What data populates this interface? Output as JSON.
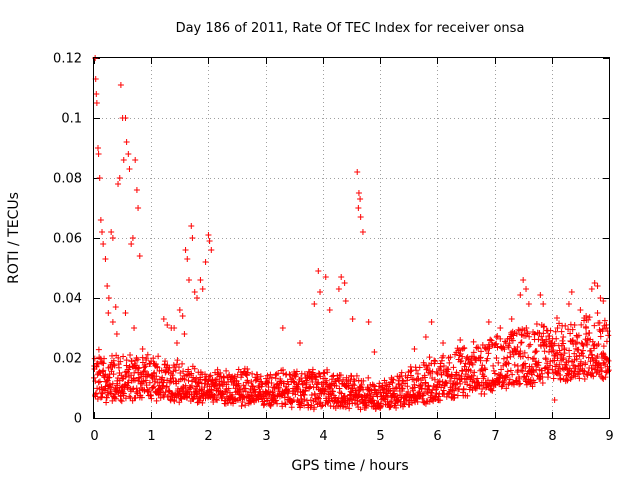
{
  "chart_data": {
    "type": "scatter",
    "title": "Day 186 of 2011, Rate Of TEC Index for receiver onsa",
    "xlabel": "GPS time / hours",
    "ylabel": "ROTI / TECUs",
    "xlim": [
      0,
      9
    ],
    "ylim": [
      0,
      0.12
    ],
    "x_ticks": [
      0,
      1,
      2,
      3,
      4,
      5,
      6,
      7,
      8,
      9
    ],
    "x_tick_labels": [
      "0",
      "1",
      "2",
      "3",
      "4",
      "5",
      "6",
      "7",
      "8",
      "9"
    ],
    "y_ticks": [
      0,
      0.02,
      0.04,
      0.06,
      0.08,
      0.1,
      0.12
    ],
    "y_tick_labels": [
      "0",
      "0.02",
      "0.04",
      "0.06",
      "0.08",
      "0.1",
      "0.12"
    ],
    "grid": true,
    "marker": "+",
    "color": "#ff0000",
    "series": [
      {
        "name": "ROTI",
        "points": [
          [
            0.02,
            0.12
          ],
          [
            0.03,
            0.113
          ],
          [
            0.04,
            0.108
          ],
          [
            0.05,
            0.105
          ],
          [
            0.07,
            0.09
          ],
          [
            0.08,
            0.088
          ],
          [
            0.1,
            0.08
          ],
          [
            0.12,
            0.066
          ],
          [
            0.14,
            0.062
          ],
          [
            0.16,
            0.058
          ],
          [
            0.2,
            0.053
          ],
          [
            0.23,
            0.044
          ],
          [
            0.26,
            0.04
          ],
          [
            0.3,
            0.062
          ],
          [
            0.33,
            0.06
          ],
          [
            0.38,
            0.037
          ],
          [
            0.42,
            0.078
          ],
          [
            0.45,
            0.08
          ],
          [
            0.47,
            0.111
          ],
          [
            0.5,
            0.1
          ],
          [
            0.52,
            0.086
          ],
          [
            0.55,
            0.1
          ],
          [
            0.57,
            0.092
          ],
          [
            0.6,
            0.088
          ],
          [
            0.62,
            0.083
          ],
          [
            0.65,
            0.058
          ],
          [
            0.68,
            0.06
          ],
          [
            0.72,
            0.086
          ],
          [
            0.75,
            0.076
          ],
          [
            0.77,
            0.07
          ],
          [
            0.8,
            0.054
          ],
          [
            0.33,
            0.032
          ],
          [
            0.4,
            0.028
          ],
          [
            0.25,
            0.035
          ],
          [
            0.55,
            0.035
          ],
          [
            0.7,
            0.03
          ],
          [
            0.85,
            0.023
          ],
          [
            1.22,
            0.033
          ],
          [
            1.28,
            0.031
          ],
          [
            1.35,
            0.03
          ],
          [
            1.5,
            0.036
          ],
          [
            1.55,
            0.034
          ],
          [
            1.6,
            0.056
          ],
          [
            1.63,
            0.053
          ],
          [
            1.66,
            0.046
          ],
          [
            1.7,
            0.064
          ],
          [
            1.72,
            0.06
          ],
          [
            1.76,
            0.042
          ],
          [
            1.8,
            0.04
          ],
          [
            1.86,
            0.046
          ],
          [
            1.9,
            0.043
          ],
          [
            1.95,
            0.052
          ],
          [
            2.0,
            0.061
          ],
          [
            2.02,
            0.059
          ],
          [
            2.05,
            0.056
          ],
          [
            1.58,
            0.028
          ],
          [
            1.45,
            0.025
          ],
          [
            1.4,
            0.03
          ],
          [
            3.3,
            0.03
          ],
          [
            3.6,
            0.025
          ],
          [
            3.85,
            0.038
          ],
          [
            3.92,
            0.049
          ],
          [
            3.95,
            0.042
          ],
          [
            4.05,
            0.047
          ],
          [
            4.12,
            0.036
          ],
          [
            4.28,
            0.043
          ],
          [
            4.32,
            0.047
          ],
          [
            4.38,
            0.045
          ],
          [
            4.4,
            0.039
          ],
          [
            4.52,
            0.033
          ],
          [
            4.6,
            0.082
          ],
          [
            4.63,
            0.075
          ],
          [
            4.65,
            0.073
          ],
          [
            4.7,
            0.062
          ],
          [
            4.62,
            0.07
          ],
          [
            4.66,
            0.067
          ],
          [
            4.8,
            0.032
          ],
          [
            4.9,
            0.022
          ],
          [
            5.6,
            0.023
          ],
          [
            5.8,
            0.027
          ],
          [
            5.9,
            0.032
          ],
          [
            6.1,
            0.025
          ],
          [
            6.4,
            0.026
          ],
          [
            6.9,
            0.032
          ],
          [
            7.1,
            0.03
          ],
          [
            7.3,
            0.033
          ],
          [
            7.45,
            0.041
          ],
          [
            7.5,
            0.046
          ],
          [
            7.55,
            0.043
          ],
          [
            7.6,
            0.038
          ],
          [
            7.8,
            0.041
          ],
          [
            7.85,
            0.038
          ],
          [
            8.1,
            0.03
          ],
          [
            8.3,
            0.038
          ],
          [
            8.35,
            0.042
          ],
          [
            8.5,
            0.036
          ],
          [
            8.6,
            0.034
          ],
          [
            8.7,
            0.043
          ],
          [
            8.75,
            0.045
          ],
          [
            8.8,
            0.044
          ],
          [
            8.85,
            0.04
          ],
          [
            8.9,
            0.039
          ],
          [
            8.95,
            0.03
          ],
          [
            8.8,
            0.035
          ],
          [
            8.6,
            0.028
          ],
          [
            8.4,
            0.031
          ],
          [
            8.2,
            0.027
          ],
          [
            8.0,
            0.025
          ],
          [
            7.2,
            0.025
          ],
          [
            7.7,
            0.028
          ],
          [
            8.9,
            0.013
          ],
          [
            8.05,
            0.006
          ]
        ]
      }
    ],
    "dense_band": {
      "description": "dense noisy background band of ROTI samples, ~0.003-0.02 TECU/s",
      "x_start": 0.0,
      "x_end": 9.0,
      "step_hours": 0.0045,
      "y_low": [
        [
          0.0,
          0.006
        ],
        [
          1.0,
          0.007
        ],
        [
          2.0,
          0.006
        ],
        [
          3.0,
          0.005
        ],
        [
          4.0,
          0.004
        ],
        [
          5.0,
          0.004
        ],
        [
          6.0,
          0.006
        ],
        [
          7.0,
          0.01
        ],
        [
          8.0,
          0.013
        ],
        [
          9.0,
          0.015
        ]
      ],
      "y_high": [
        [
          0.0,
          0.022
        ],
        [
          1.0,
          0.02
        ],
        [
          2.0,
          0.016
        ],
        [
          3.0,
          0.015
        ],
        [
          4.0,
          0.016
        ],
        [
          5.0,
          0.012
        ],
        [
          6.0,
          0.02
        ],
        [
          7.0,
          0.027
        ],
        [
          8.0,
          0.032
        ],
        [
          9.0,
          0.034
        ]
      ]
    }
  }
}
